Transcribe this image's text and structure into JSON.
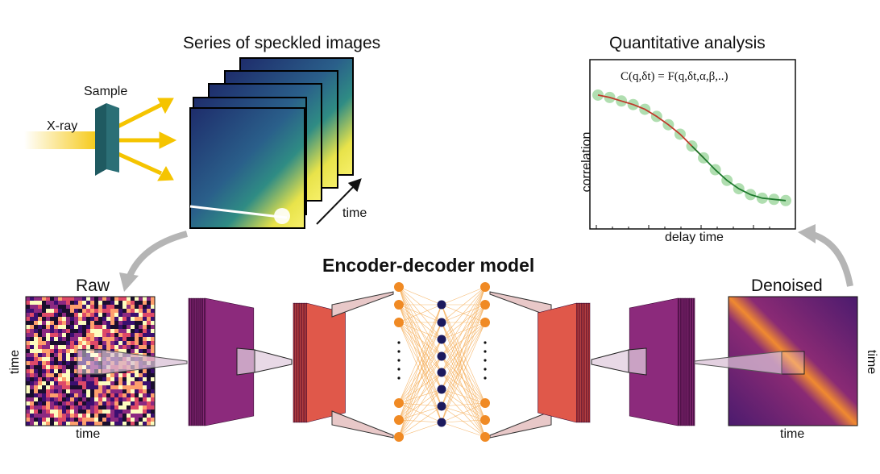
{
  "titles": {
    "series": "Series of speckled images",
    "quant": "Quantitative analysis",
    "model": "Encoder-decoder model"
  },
  "labels": {
    "sample": "Sample",
    "xray": "X-ray",
    "time_stack": "time",
    "raw": "Raw",
    "denoised": "Denoised",
    "raw_time_x": "time",
    "raw_time_y": "time",
    "den_time_x": "time",
    "den_time_y": "time",
    "formula": "C(q,δt) = F(q,δt,α,β,..)",
    "ylabel": "correlation",
    "xlabel": "delay time"
  },
  "colors": {
    "xray": "#f5c400",
    "sample": "#2b6f76",
    "encoder_purple": "#7b1f6e",
    "encoder_red": "#d23b3b",
    "node_orange": "#f08a24",
    "node_navy": "#1c1a5e",
    "fit_red": "#c0392b",
    "fit_green": "#1f7a2e",
    "points": "#8fd08f",
    "arrow_gray": "#b5b5b5"
  },
  "chart_data": {
    "type": "scatter",
    "xlabel": "delay time",
    "ylabel": "correlation",
    "formula": "C(q,δt) = F(q,δt,α,β,..)",
    "xscale": "log",
    "points": [
      0.98,
      0.96,
      0.93,
      0.9,
      0.86,
      0.8,
      0.73,
      0.65,
      0.55,
      0.45,
      0.35,
      0.26,
      0.19,
      0.14,
      0.11,
      0.1,
      0.09
    ]
  }
}
